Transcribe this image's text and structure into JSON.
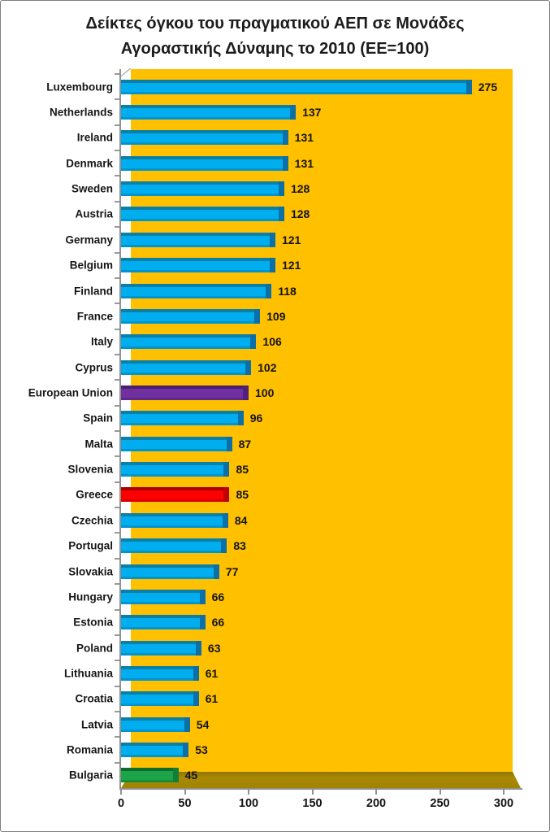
{
  "title": {
    "line1": "Δείκτες όγκου του πραγματικού ΑΕΠ σε Μονάδες",
    "line2": "Αγοραστικής Δύναμης το 2010 (ΕΕ=100)"
  },
  "chart_data": {
    "type": "bar",
    "orientation": "horizontal",
    "title": "Δείκτες όγκου του πραγματικού ΑΕΠ σε Μονάδες Αγοραστικής Δύναμης το 2010 (ΕΕ=100)",
    "categories": [
      "Luxembourg",
      "Netherlands",
      "Ireland",
      "Denmark",
      "Sweden",
      "Austria",
      "Germany",
      "Belgium",
      "Finland",
      "France",
      "Italy",
      "Cyprus",
      "European Union",
      "Spain",
      "Malta",
      "Slovenia",
      "Greece",
      "Czechia",
      "Portugal",
      "Slovakia",
      "Hungary",
      "Estonia",
      "Poland",
      "Lithuania",
      "Croatia",
      "Latvia",
      "Romania",
      "Bulgaria"
    ],
    "values": [
      275,
      137,
      131,
      131,
      128,
      128,
      121,
      121,
      118,
      109,
      106,
      102,
      100,
      96,
      87,
      85,
      85,
      84,
      83,
      77,
      66,
      66,
      63,
      61,
      61,
      54,
      53,
      45
    ],
    "colors": [
      "blue",
      "blue",
      "blue",
      "blue",
      "blue",
      "blue",
      "blue",
      "blue",
      "blue",
      "blue",
      "blue",
      "blue",
      "purple",
      "blue",
      "blue",
      "blue",
      "red",
      "blue",
      "blue",
      "blue",
      "blue",
      "blue",
      "blue",
      "blue",
      "blue",
      "blue",
      "blue",
      "green"
    ],
    "x_ticks": [
      "0",
      "50",
      "100",
      "150",
      "200",
      "250",
      "300"
    ],
    "x_tick_values": [
      0,
      50,
      100,
      150,
      200,
      250,
      300
    ],
    "xlim": [
      0,
      300
    ],
    "render_xmax": 307,
    "xlabel": "",
    "ylabel": "",
    "grid": false,
    "legend": false,
    "style": "3d-horizontal-bars",
    "plot_background": "#FFC000",
    "floor_color": "#A18300",
    "axis_color": "#919191",
    "palette": {
      "blue": {
        "body": "#00AEEF",
        "top": "#0B7FA6",
        "cap": "#0C6FA6"
      },
      "purple": {
        "body": "#7030A0",
        "top": "#4B1F70",
        "cap": "#512078"
      },
      "red": {
        "body": "#FD0000",
        "top": "#A80000",
        "cap": "#BE0000"
      },
      "green": {
        "body": "#1DA348",
        "top": "#0D6B2C",
        "cap": "#117E37"
      }
    }
  }
}
